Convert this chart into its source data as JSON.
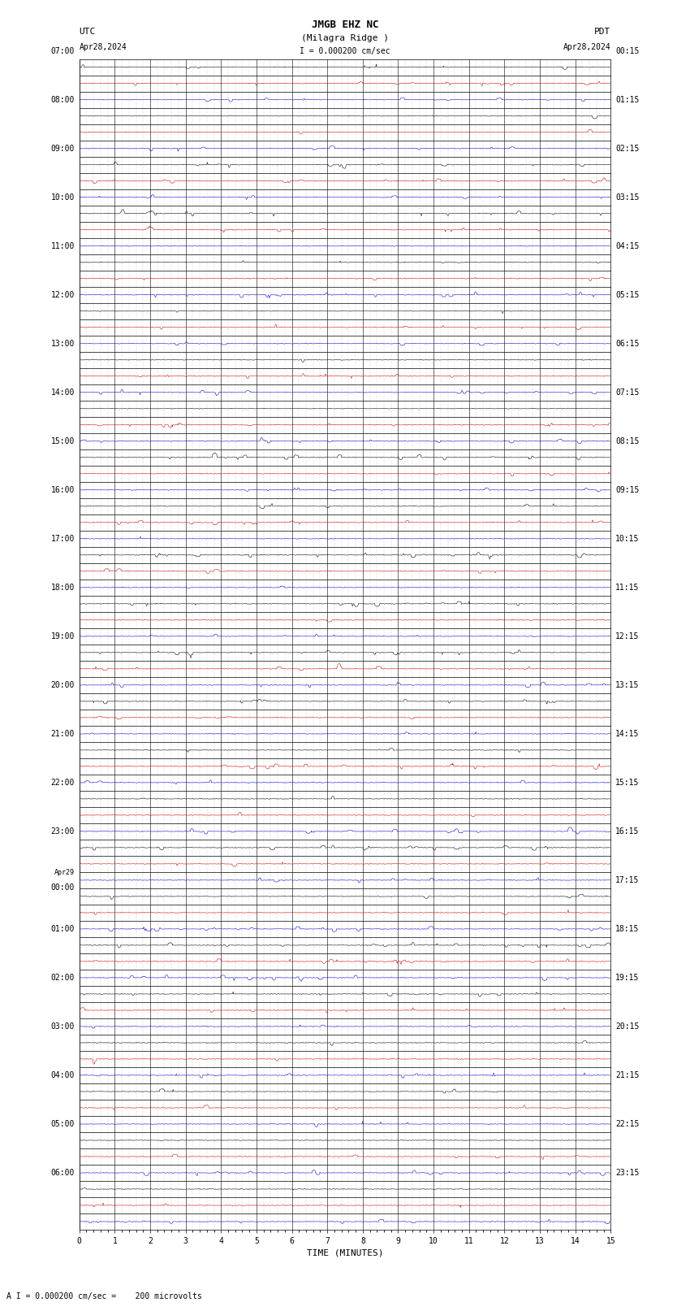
{
  "title_line1": "JMGB EHZ NC",
  "title_line2": "(Milagra Ridge )",
  "title_line3": "I = 0.000200 cm/sec",
  "left_header_line1": "UTC",
  "left_header_line2": "Apr28,2024",
  "right_header_line1": "PDT",
  "right_header_line2": "Apr28,2024",
  "xlabel": "TIME (MINUTES)",
  "footnote": "A I = 0.000200 cm/sec =    200 microvolts",
  "background_color": "#ffffff",
  "trace_color_blue": "#0000cc",
  "trace_color_red": "#cc0000",
  "trace_color_green": "#006600",
  "trace_color_black": "#000000",
  "time_min": 0,
  "time_max": 15,
  "num_hours": 24,
  "traces_per_hour": 3,
  "left_labels": [
    "07:00",
    "08:00",
    "09:00",
    "10:00",
    "11:00",
    "12:00",
    "13:00",
    "14:00",
    "15:00",
    "16:00",
    "17:00",
    "18:00",
    "19:00",
    "20:00",
    "21:00",
    "22:00",
    "23:00",
    "Apr29\n00:00",
    "01:00",
    "02:00",
    "03:00",
    "04:00",
    "05:00",
    "06:00"
  ],
  "right_labels": [
    "00:15",
    "01:15",
    "02:15",
    "03:15",
    "04:15",
    "05:15",
    "06:15",
    "07:15",
    "08:15",
    "09:15",
    "10:15",
    "11:15",
    "12:15",
    "13:15",
    "14:15",
    "15:15",
    "16:15",
    "17:15",
    "18:15",
    "19:15",
    "20:15",
    "21:15",
    "22:15",
    "23:15"
  ],
  "title_fontsize": 8,
  "label_fontsize": 7,
  "tick_fontsize": 7
}
